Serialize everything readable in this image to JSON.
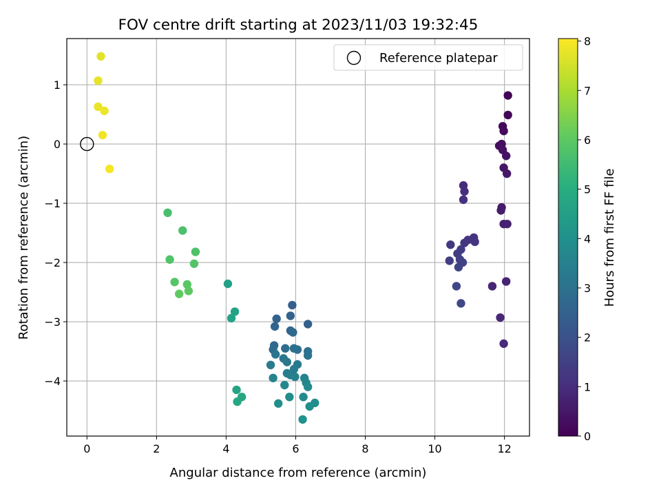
{
  "chart_data": {
    "type": "scatter",
    "title": "FOV centre drift starting at 2023/11/03 19:32:45",
    "xlabel": "Angular distance from reference (arcmin)",
    "ylabel": "Rotation from reference (arcmin)",
    "xlim": [
      -0.58,
      12.72
    ],
    "ylim": [
      -4.93,
      1.78
    ],
    "xticks": [
      0,
      2,
      4,
      6,
      8,
      10,
      12
    ],
    "xtick_labels": [
      "0",
      "2",
      "4",
      "6",
      "8",
      "10",
      "12"
    ],
    "yticks": [
      1,
      0,
      -1,
      -2,
      -3,
      -4
    ],
    "ytick_labels": [
      "1",
      "0",
      "−1",
      "−2",
      "−3",
      "−4"
    ],
    "grid": true,
    "legend": {
      "location": "top-right",
      "entries": [
        {
          "label": "Reference platepar",
          "marker": "open-circle",
          "x": 0,
          "y": 0
        }
      ]
    },
    "colorbar": {
      "label": "Hours from first FF file",
      "colormap": "viridis",
      "range": [
        0,
        8.05
      ],
      "ticks": [
        0,
        1,
        2,
        3,
        4,
        5,
        6,
        7,
        8
      ],
      "tick_labels": [
        "0",
        "1",
        "2",
        "3",
        "4",
        "5",
        "6",
        "7",
        "8"
      ]
    },
    "points": [
      {
        "x": 12.1,
        "y": 0.82,
        "h": 0.05
      },
      {
        "x": 12.1,
        "y": 0.49,
        "h": 0.1
      },
      {
        "x": 11.95,
        "y": 0.3,
        "h": 0.15
      },
      {
        "x": 11.98,
        "y": 0.22,
        "h": 0.2
      },
      {
        "x": 11.85,
        "y": -0.03,
        "h": 0.25
      },
      {
        "x": 11.92,
        "y": 0.0,
        "h": 0.3
      },
      {
        "x": 11.95,
        "y": -0.1,
        "h": 0.35
      },
      {
        "x": 12.05,
        "y": -0.2,
        "h": 0.4
      },
      {
        "x": 11.98,
        "y": -0.4,
        "h": 0.45
      },
      {
        "x": 12.07,
        "y": -0.5,
        "h": 0.5
      },
      {
        "x": 11.92,
        "y": -1.07,
        "h": 0.55
      },
      {
        "x": 11.9,
        "y": -1.12,
        "h": 0.6
      },
      {
        "x": 11.98,
        "y": -1.35,
        "h": 0.65
      },
      {
        "x": 12.08,
        "y": -1.35,
        "h": 0.7
      },
      {
        "x": 12.05,
        "y": -2.32,
        "h": 0.75
      },
      {
        "x": 11.65,
        "y": -2.4,
        "h": 0.8
      },
      {
        "x": 11.88,
        "y": -2.93,
        "h": 0.85
      },
      {
        "x": 11.98,
        "y": -3.37,
        "h": 0.9
      },
      {
        "x": 10.82,
        "y": -0.7,
        "h": 0.95
      },
      {
        "x": 10.85,
        "y": -0.8,
        "h": 1.0
      },
      {
        "x": 10.82,
        "y": -0.94,
        "h": 1.05
      },
      {
        "x": 11.12,
        "y": -1.58,
        "h": 1.1
      },
      {
        "x": 11.15,
        "y": -1.65,
        "h": 1.15
      },
      {
        "x": 10.95,
        "y": -1.62,
        "h": 1.2
      },
      {
        "x": 10.85,
        "y": -1.67,
        "h": 1.25
      },
      {
        "x": 10.45,
        "y": -1.7,
        "h": 1.3
      },
      {
        "x": 10.75,
        "y": -1.78,
        "h": 1.35
      },
      {
        "x": 10.65,
        "y": -1.85,
        "h": 1.4
      },
      {
        "x": 10.42,
        "y": -1.97,
        "h": 1.45
      },
      {
        "x": 10.72,
        "y": -1.95,
        "h": 1.5
      },
      {
        "x": 10.8,
        "y": -2.0,
        "h": 1.55
      },
      {
        "x": 10.68,
        "y": -2.08,
        "h": 1.6
      },
      {
        "x": 10.62,
        "y": -2.4,
        "h": 1.65
      },
      {
        "x": 10.75,
        "y": -2.69,
        "h": 1.7
      },
      {
        "x": 5.9,
        "y": -2.72,
        "h": 2.4
      },
      {
        "x": 6.35,
        "y": -3.04,
        "h": 2.45
      },
      {
        "x": 5.85,
        "y": -2.9,
        "h": 2.5
      },
      {
        "x": 5.45,
        "y": -2.95,
        "h": 2.55
      },
      {
        "x": 5.4,
        "y": -3.08,
        "h": 2.6
      },
      {
        "x": 5.85,
        "y": -3.15,
        "h": 2.65
      },
      {
        "x": 5.92,
        "y": -3.18,
        "h": 2.7
      },
      {
        "x": 5.38,
        "y": -3.4,
        "h": 2.75
      },
      {
        "x": 5.35,
        "y": -3.47,
        "h": 2.8
      },
      {
        "x": 5.7,
        "y": -3.45,
        "h": 2.85
      },
      {
        "x": 5.95,
        "y": -3.45,
        "h": 2.9
      },
      {
        "x": 6.05,
        "y": -3.47,
        "h": 2.95
      },
      {
        "x": 6.35,
        "y": -3.5,
        "h": 3.0
      },
      {
        "x": 6.35,
        "y": -3.57,
        "h": 3.05
      },
      {
        "x": 5.42,
        "y": -3.55,
        "h": 3.1
      },
      {
        "x": 5.65,
        "y": -3.62,
        "h": 3.15
      },
      {
        "x": 5.75,
        "y": -3.68,
        "h": 3.2
      },
      {
        "x": 6.05,
        "y": -3.72,
        "h": 3.25
      },
      {
        "x": 5.28,
        "y": -3.73,
        "h": 3.3
      },
      {
        "x": 5.95,
        "y": -3.8,
        "h": 3.35
      },
      {
        "x": 5.75,
        "y": -3.87,
        "h": 3.4
      },
      {
        "x": 5.85,
        "y": -3.9,
        "h": 3.45
      },
      {
        "x": 5.98,
        "y": -3.93,
        "h": 3.5
      },
      {
        "x": 6.25,
        "y": -3.95,
        "h": 3.55
      },
      {
        "x": 5.35,
        "y": -3.95,
        "h": 3.6
      },
      {
        "x": 6.3,
        "y": -4.03,
        "h": 3.65
      },
      {
        "x": 5.68,
        "y": -4.07,
        "h": 3.7
      },
      {
        "x": 6.35,
        "y": -4.1,
        "h": 3.75
      },
      {
        "x": 6.22,
        "y": -4.27,
        "h": 3.8
      },
      {
        "x": 5.82,
        "y": -4.27,
        "h": 3.85
      },
      {
        "x": 6.55,
        "y": -4.37,
        "h": 3.9
      },
      {
        "x": 5.5,
        "y": -4.38,
        "h": 3.95
      },
      {
        "x": 6.4,
        "y": -4.43,
        "h": 4.0
      },
      {
        "x": 6.2,
        "y": -4.65,
        "h": 4.05
      },
      {
        "x": 4.05,
        "y": -2.36,
        "h": 4.55
      },
      {
        "x": 4.25,
        "y": -2.83,
        "h": 4.6
      },
      {
        "x": 4.15,
        "y": -2.94,
        "h": 4.65
      },
      {
        "x": 4.3,
        "y": -4.15,
        "h": 4.7
      },
      {
        "x": 4.45,
        "y": -4.27,
        "h": 4.75
      },
      {
        "x": 4.32,
        "y": -4.35,
        "h": 4.8
      },
      {
        "x": 2.32,
        "y": -1.16,
        "h": 5.65
      },
      {
        "x": 2.75,
        "y": -1.46,
        "h": 5.7
      },
      {
        "x": 3.12,
        "y": -1.82,
        "h": 5.75
      },
      {
        "x": 2.38,
        "y": -1.95,
        "h": 5.8
      },
      {
        "x": 3.08,
        "y": -2.02,
        "h": 5.85
      },
      {
        "x": 2.52,
        "y": -2.33,
        "h": 5.9
      },
      {
        "x": 2.88,
        "y": -2.37,
        "h": 5.95
      },
      {
        "x": 2.92,
        "y": -2.48,
        "h": 6.0
      },
      {
        "x": 2.65,
        "y": -2.53,
        "h": 6.05
      },
      {
        "x": 0.4,
        "y": 1.48,
        "h": 7.7
      },
      {
        "x": 0.32,
        "y": 1.07,
        "h": 7.75
      },
      {
        "x": 0.32,
        "y": 0.63,
        "h": 7.8
      },
      {
        "x": 0.5,
        "y": 0.56,
        "h": 7.85
      },
      {
        "x": 0.45,
        "y": 0.15,
        "h": 7.9
      },
      {
        "x": 0.65,
        "y": -0.42,
        "h": 7.95
      }
    ]
  }
}
